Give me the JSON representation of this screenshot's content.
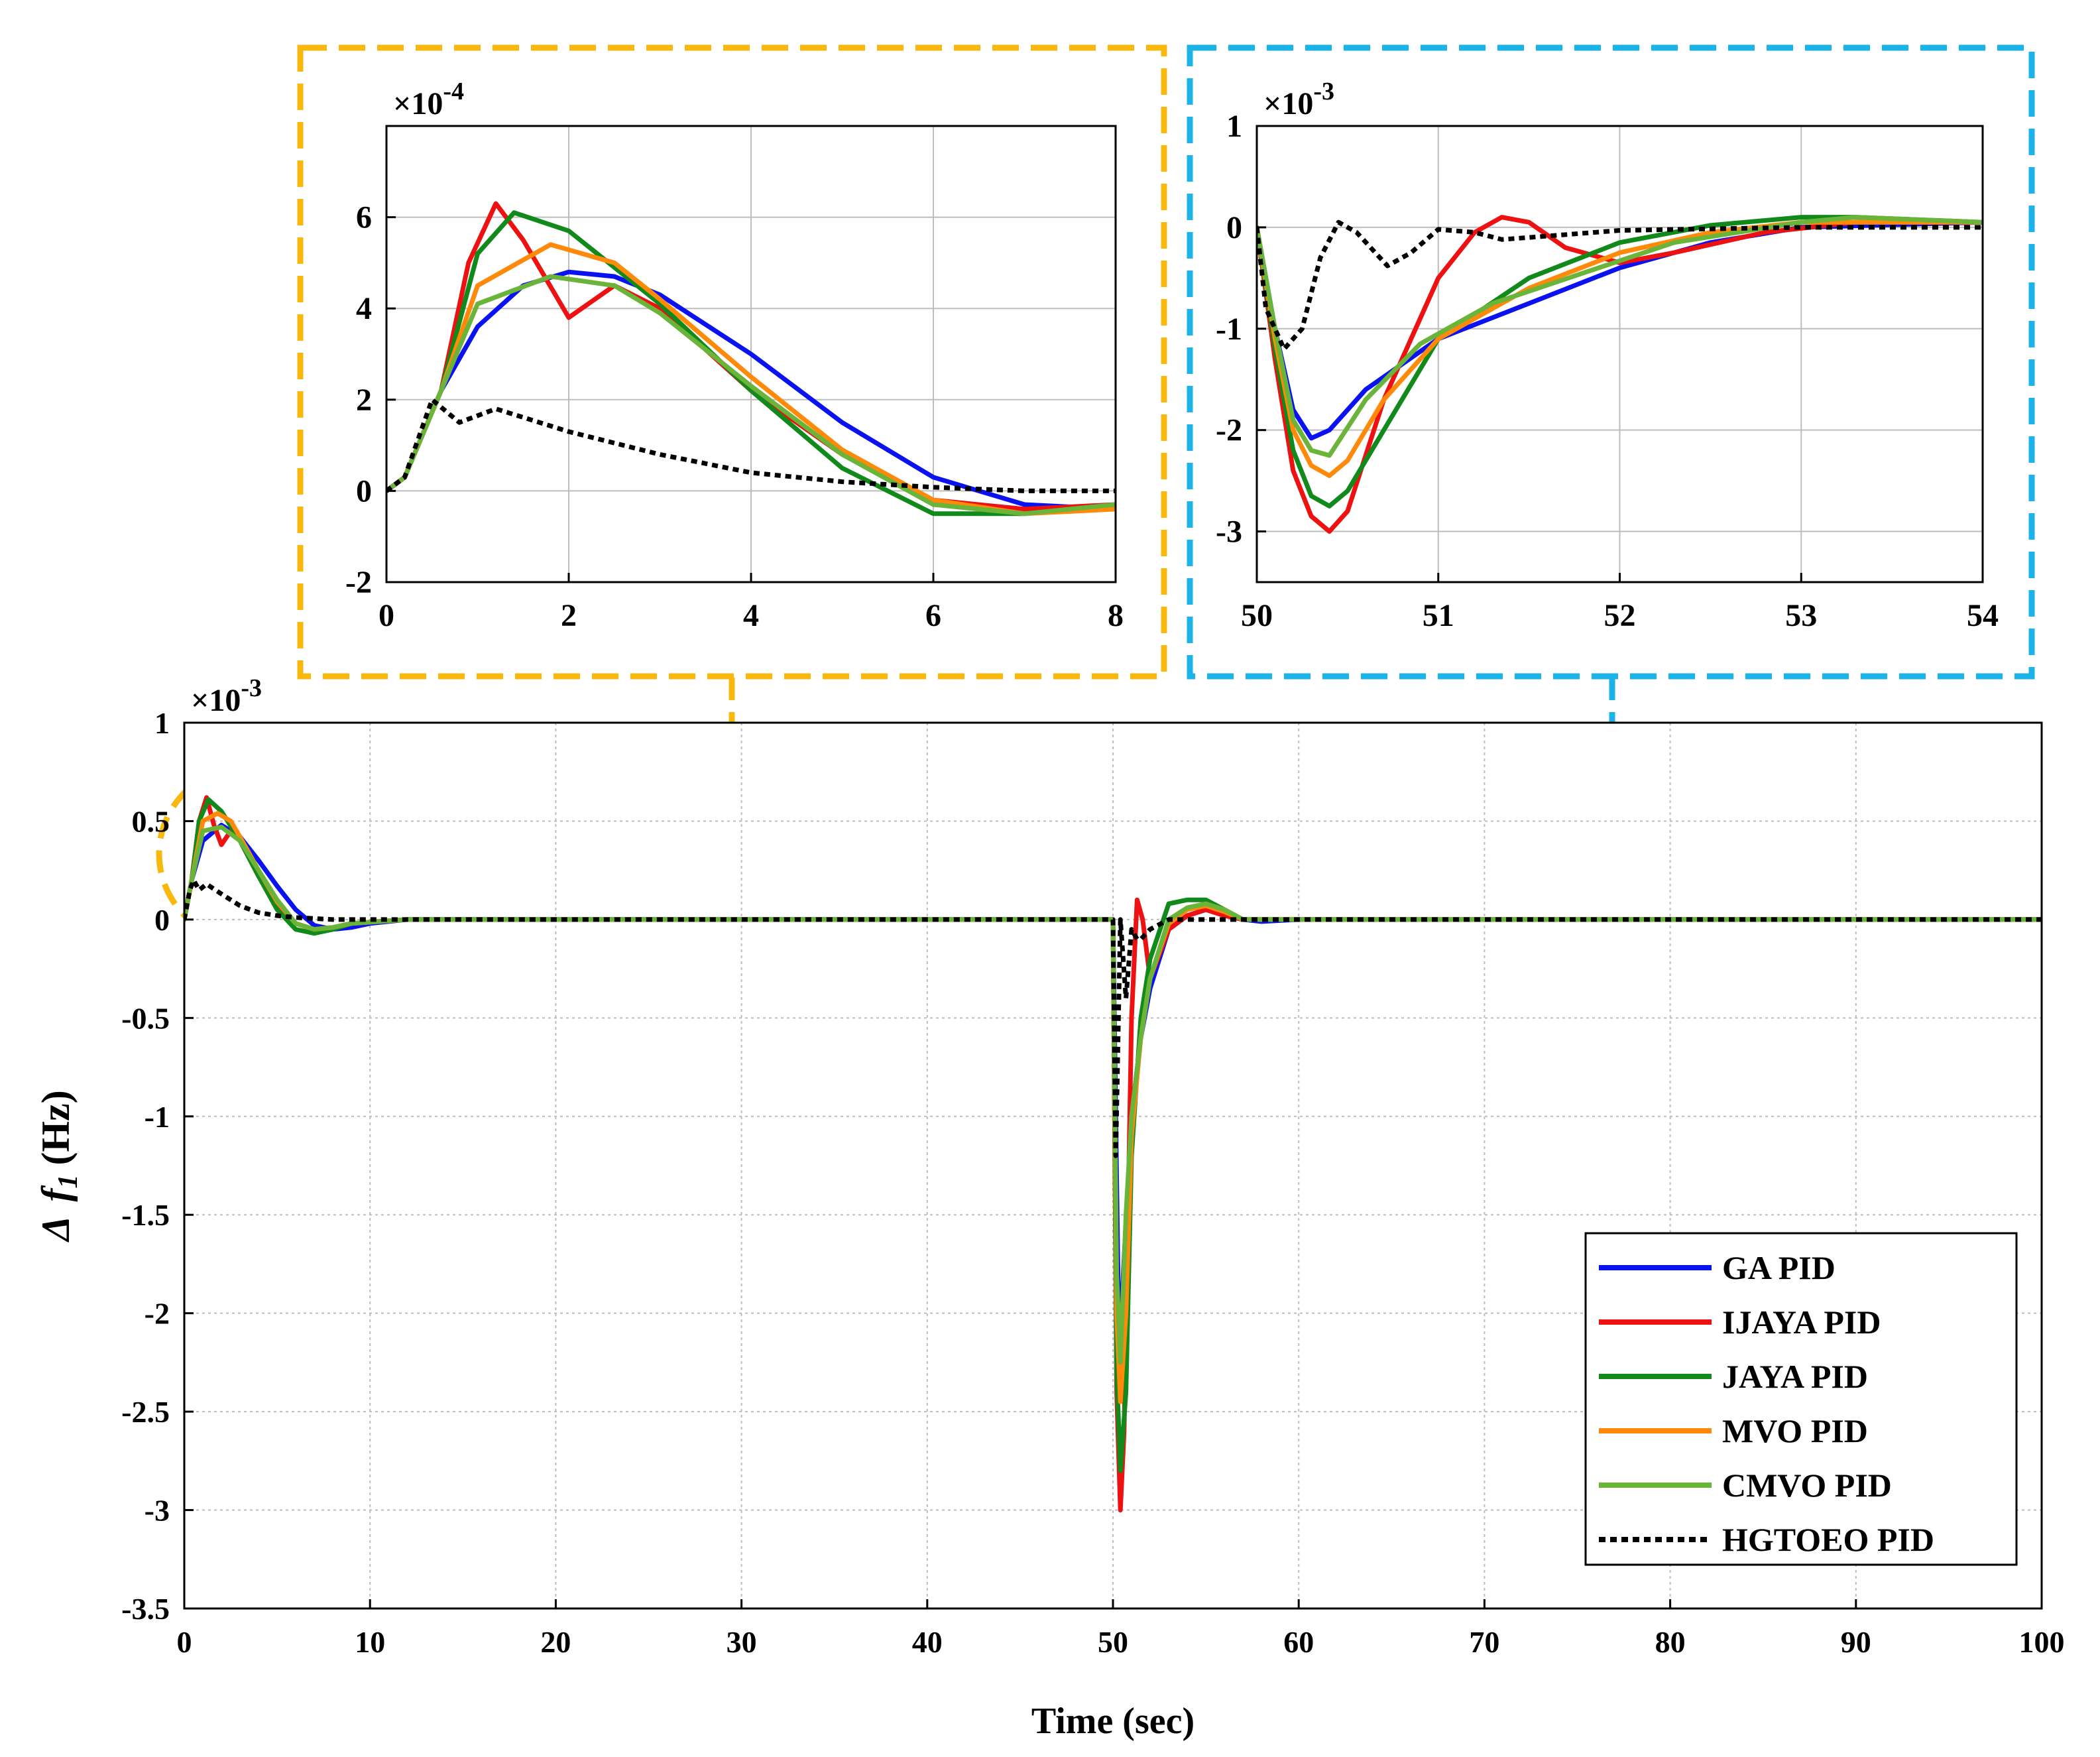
{
  "colors": {
    "ga": "#0a12f0",
    "ijaya": "#ee1111",
    "jaya": "#118a1b",
    "mvo": "#ff8a0a",
    "cmvo": "#6bb43a",
    "hgtoeo": "#000000",
    "zoom_left": "#f9b80e",
    "zoom_right": "#1bb3e8",
    "grid": "#bdbdbd"
  },
  "chart_data": [
    {
      "id": "main",
      "type": "line",
      "title": "",
      "xlabel": "Time (sec)",
      "ylabel": "Δ f1 (Hz)",
      "ylabel_parts": {
        "delta": "Δ",
        "var": "f",
        "sub": "1",
        "unit": "(Hz)"
      },
      "exponent": {
        "base": "×10",
        "power": "-3"
      },
      "xlim": [
        0,
        100
      ],
      "ylim": [
        -3.5,
        1
      ],
      "xticks": [
        0,
        10,
        20,
        30,
        40,
        50,
        60,
        70,
        80,
        90,
        100
      ],
      "xtick_labels": [
        "0",
        "10",
        "20",
        "30",
        "40",
        "50",
        "60",
        "70",
        "80",
        "90",
        "100"
      ],
      "yticks": [
        1,
        0.5,
        0,
        -0.5,
        -1,
        -1.5,
        -2,
        -2.5,
        -3,
        -3.5
      ],
      "ytick_labels": [
        "1",
        "0.5",
        "0",
        "-0.5",
        "-1",
        "-1.5",
        "-2",
        "-2.5",
        "-3",
        "-3.5"
      ],
      "grid": true,
      "legend_position": "bottom-right",
      "series": [
        {
          "key": "ga",
          "name": "GA PID",
          "style": "solid",
          "x": [
            0,
            0.4,
            1,
            2,
            3,
            4,
            5,
            6,
            7,
            8,
            9,
            10,
            12,
            50,
            50.15,
            50.3,
            50.5,
            51,
            51.5,
            52,
            53,
            54,
            55,
            56,
            57,
            58,
            60,
            100
          ],
          "y": [
            0,
            0.2,
            0.4,
            0.48,
            0.42,
            0.3,
            0.17,
            0.05,
            -0.03,
            -0.05,
            -0.04,
            -0.02,
            0,
            0,
            -1.0,
            -2.0,
            -1.9,
            -1.0,
            -0.6,
            -0.35,
            -0.05,
            0.02,
            0.05,
            0.03,
            0.0,
            -0.01,
            0,
            0
          ]
        },
        {
          "key": "ijaya",
          "name": "IJAYA PID",
          "style": "solid",
          "x": [
            0,
            0.4,
            0.8,
            1.2,
            1.6,
            2,
            2.5,
            3,
            4,
            5,
            6,
            7,
            8,
            9,
            12,
            50,
            50.2,
            50.4,
            50.6,
            51,
            51.3,
            51.6,
            52,
            53,
            54,
            55,
            56,
            57,
            60,
            100
          ],
          "y": [
            0,
            0.2,
            0.5,
            0.62,
            0.48,
            0.38,
            0.45,
            0.4,
            0.22,
            0.08,
            -0.02,
            -0.05,
            -0.04,
            -0.02,
            0,
            0,
            -2.4,
            -3.0,
            -2.6,
            -0.5,
            0.1,
            0.0,
            -0.3,
            -0.05,
            0.02,
            0.05,
            0.02,
            0.0,
            0,
            0
          ]
        },
        {
          "key": "jaya",
          "name": "JAYA PID",
          "style": "solid",
          "x": [
            0,
            0.4,
            0.8,
            1.3,
            2,
            3,
            4,
            5,
            6,
            7,
            8,
            9,
            12,
            50,
            50.2,
            50.4,
            50.7,
            51,
            51.5,
            52,
            53,
            54,
            55,
            56,
            57,
            60,
            100
          ],
          "y": [
            0,
            0.2,
            0.5,
            0.61,
            0.55,
            0.4,
            0.22,
            0.05,
            -0.05,
            -0.07,
            -0.05,
            -0.02,
            0,
            0,
            -2.3,
            -2.8,
            -2.4,
            -1.2,
            -0.5,
            -0.2,
            0.08,
            0.1,
            0.1,
            0.05,
            0.0,
            0,
            0
          ]
        },
        {
          "key": "mvo",
          "name": "MVO PID",
          "style": "solid",
          "x": [
            0,
            0.4,
            1,
            1.8,
            2.5,
            3,
            4,
            5,
            6,
            7,
            8,
            9,
            12,
            50,
            50.2,
            50.4,
            50.7,
            51,
            51.5,
            52,
            53,
            54,
            55,
            56,
            57,
            60,
            100
          ],
          "y": [
            0,
            0.2,
            0.5,
            0.54,
            0.5,
            0.42,
            0.25,
            0.09,
            -0.02,
            -0.05,
            -0.04,
            -0.02,
            0,
            0,
            -2.0,
            -2.45,
            -2.0,
            -1.1,
            -0.6,
            -0.3,
            -0.02,
            0.05,
            0.07,
            0.04,
            0.0,
            0,
            0
          ]
        },
        {
          "key": "cmvo",
          "name": "CMVO PID",
          "style": "solid",
          "x": [
            0,
            0.4,
            1,
            2,
            3,
            4,
            5,
            6,
            7,
            8,
            9,
            12,
            50,
            50.2,
            50.4,
            50.7,
            51,
            51.5,
            52,
            53,
            54,
            55,
            56,
            57,
            60,
            100
          ],
          "y": [
            0,
            0.2,
            0.45,
            0.47,
            0.4,
            0.25,
            0.1,
            -0.02,
            -0.05,
            -0.04,
            -0.02,
            0,
            0,
            -1.8,
            -2.25,
            -1.5,
            -1.0,
            -0.6,
            -0.3,
            0.0,
            0.06,
            0.08,
            0.05,
            0.0,
            0,
            0
          ]
        },
        {
          "key": "hgtoeo",
          "name": "HGTOEO PID",
          "style": "dotted",
          "x": [
            0,
            0.3,
            0.5,
            0.8,
            1.2,
            2,
            3,
            4,
            5,
            6,
            7,
            8,
            50,
            50.15,
            50.4,
            50.7,
            51,
            51.3,
            51.5,
            52,
            53,
            54,
            100
          ],
          "y": [
            0,
            0.15,
            0.2,
            0.15,
            0.18,
            0.13,
            0.07,
            0.035,
            0.02,
            0.01,
            0.005,
            0,
            0,
            -1.2,
            0.0,
            -0.4,
            -0.05,
            -0.1,
            -0.1,
            -0.05,
            0.0,
            0.0,
            0
          ]
        }
      ]
    },
    {
      "id": "zoom_left",
      "type": "line",
      "title": "",
      "xlabel": "",
      "ylabel": "",
      "exponent": {
        "base": "×10",
        "power": "-4"
      },
      "xlim": [
        0,
        8
      ],
      "ylim": [
        -2,
        8
      ],
      "xticks": [
        0,
        2,
        4,
        6,
        8
      ],
      "xtick_labels": [
        "0",
        "2",
        "4",
        "6",
        "8"
      ],
      "yticks": [
        6,
        4,
        2,
        0,
        -2
      ],
      "ytick_labels": [
        "6",
        "4",
        "2",
        "0",
        "-2"
      ],
      "grid": true,
      "series": [
        {
          "key": "ga",
          "name": "GA PID",
          "x": [
            0,
            0.2,
            0.6,
            1,
            1.5,
            2,
            2.5,
            3,
            4,
            5,
            6,
            7,
            8
          ],
          "y": [
            0,
            0.3,
            2.2,
            3.6,
            4.5,
            4.8,
            4.7,
            4.3,
            3.0,
            1.5,
            0.3,
            -0.3,
            -0.4
          ]
        },
        {
          "key": "ijaya",
          "name": "IJAYA PID",
          "x": [
            0,
            0.2,
            0.6,
            0.9,
            1.2,
            1.5,
            2,
            2.5,
            3,
            4,
            5,
            6,
            7,
            8
          ],
          "y": [
            0,
            0.3,
            2.2,
            5.0,
            6.3,
            5.5,
            3.8,
            4.5,
            4.0,
            2.2,
            0.8,
            -0.2,
            -0.4,
            -0.3
          ]
        },
        {
          "key": "jaya",
          "name": "JAYA PID",
          "x": [
            0,
            0.2,
            0.6,
            1,
            1.4,
            2,
            3,
            4,
            5,
            6,
            7,
            8
          ],
          "y": [
            0,
            0.3,
            2.2,
            5.2,
            6.1,
            5.7,
            4.1,
            2.2,
            0.5,
            -0.5,
            -0.5,
            -0.3
          ]
        },
        {
          "key": "mvo",
          "name": "MVO PID",
          "x": [
            0,
            0.2,
            0.6,
            1,
            1.8,
            2.5,
            3,
            4,
            5,
            6,
            7,
            8
          ],
          "y": [
            0,
            0.3,
            2.2,
            4.5,
            5.4,
            5.0,
            4.2,
            2.5,
            0.9,
            -0.2,
            -0.5,
            -0.4
          ]
        },
        {
          "key": "cmvo",
          "name": "CMVO PID",
          "x": [
            0,
            0.2,
            0.6,
            1,
            1.8,
            2.5,
            3,
            4,
            5,
            6,
            7,
            8
          ],
          "y": [
            0,
            0.3,
            2.2,
            4.1,
            4.7,
            4.5,
            3.9,
            2.3,
            0.8,
            -0.3,
            -0.5,
            -0.3
          ]
        },
        {
          "key": "hgtoeo",
          "name": "HGTOEO PID",
          "x": [
            0,
            0.2,
            0.5,
            0.8,
            1.2,
            2,
            3,
            4,
            5,
            6,
            7,
            8
          ],
          "y": [
            0,
            0.3,
            2.0,
            1.5,
            1.8,
            1.3,
            0.8,
            0.4,
            0.2,
            0.08,
            0.0,
            0.0
          ]
        }
      ]
    },
    {
      "id": "zoom_right",
      "type": "line",
      "title": "",
      "xlabel": "",
      "ylabel": "",
      "exponent": {
        "base": "×10",
        "power": "-3"
      },
      "xlim": [
        50,
        54
      ],
      "ylim": [
        -3.5,
        1
      ],
      "xticks": [
        50,
        51,
        52,
        53,
        54
      ],
      "xtick_labels": [
        "50",
        "51",
        "52",
        "53",
        "54"
      ],
      "yticks": [
        1,
        0,
        -1,
        -2,
        -3
      ],
      "ytick_labels": [
        "1",
        "0",
        "-1",
        "-2",
        "-3"
      ],
      "grid": true,
      "series": [
        {
          "key": "ga",
          "name": "GA PID",
          "x": [
            50,
            50.1,
            50.2,
            50.3,
            50.4,
            50.6,
            51,
            51.5,
            52,
            52.5,
            53,
            54
          ],
          "y": [
            0,
            -1.0,
            -1.8,
            -2.08,
            -2.0,
            -1.6,
            -1.1,
            -0.75,
            -0.4,
            -0.15,
            0.0,
            0.05
          ]
        },
        {
          "key": "ijaya",
          "name": "IJAYA PID",
          "x": [
            50,
            50.1,
            50.2,
            50.3,
            50.4,
            50.5,
            50.7,
            51,
            51.2,
            51.35,
            51.5,
            51.7,
            52,
            52.3,
            52.8,
            53.3,
            54
          ],
          "y": [
            0,
            -1.3,
            -2.4,
            -2.85,
            -3.0,
            -2.8,
            -1.7,
            -0.5,
            -0.05,
            0.1,
            0.05,
            -0.2,
            -0.35,
            -0.25,
            -0.05,
            0.05,
            0.05
          ]
        },
        {
          "key": "jaya",
          "name": "JAYA PID",
          "x": [
            50,
            50.1,
            50.2,
            50.3,
            50.4,
            50.5,
            50.7,
            51,
            51.5,
            52,
            52.5,
            53,
            53.3,
            54
          ],
          "y": [
            0,
            -1.2,
            -2.2,
            -2.65,
            -2.75,
            -2.6,
            -2.0,
            -1.1,
            -0.5,
            -0.15,
            0.02,
            0.1,
            0.1,
            0.05
          ]
        },
        {
          "key": "mvo",
          "name": "MVO PID",
          "x": [
            50,
            50.1,
            50.2,
            50.3,
            50.4,
            50.5,
            50.7,
            51,
            51.5,
            52,
            52.5,
            53,
            54
          ],
          "y": [
            0,
            -1.1,
            -2.0,
            -2.35,
            -2.45,
            -2.3,
            -1.7,
            -1.1,
            -0.6,
            -0.25,
            -0.05,
            0.05,
            0.05
          ]
        },
        {
          "key": "cmvo",
          "name": "CMVO PID",
          "x": [
            50,
            50.1,
            50.2,
            50.3,
            50.4,
            50.6,
            50.9,
            51.3,
            51.8,
            52.3,
            53,
            53.3,
            54
          ],
          "y": [
            0,
            -1.0,
            -1.9,
            -2.2,
            -2.25,
            -1.7,
            -1.15,
            -0.75,
            -0.45,
            -0.15,
            0.05,
            0.1,
            0.05
          ]
        },
        {
          "key": "hgtoeo",
          "name": "HGTOEO PID",
          "x": [
            50,
            50.05,
            50.15,
            50.25,
            50.35,
            50.45,
            50.55,
            50.72,
            50.85,
            51.0,
            51.2,
            51.35,
            51.5,
            52,
            53,
            54
          ],
          "y": [
            0,
            -0.8,
            -1.2,
            -1.0,
            -0.3,
            0.05,
            -0.05,
            -0.38,
            -0.25,
            -0.02,
            -0.05,
            -0.12,
            -0.1,
            -0.03,
            0.0,
            0.0
          ]
        }
      ]
    }
  ]
}
